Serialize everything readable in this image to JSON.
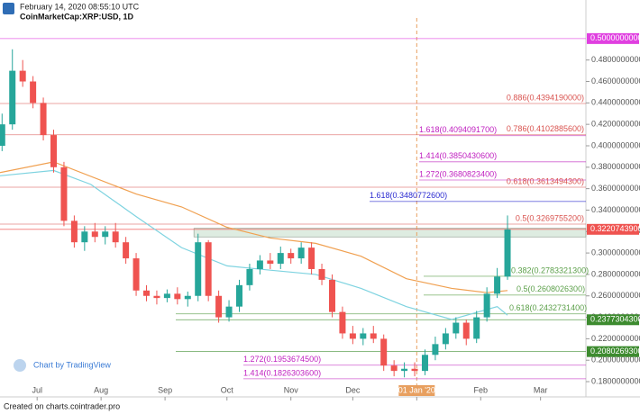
{
  "chart_data": {
    "type": "candlestick",
    "header": {
      "date": "February 14, 2020 08:55:10 UTC",
      "symbol": "CoinMarketCap:XRP:USD, 1D"
    },
    "watermark": "Chart by TradingView",
    "footer": "Created on charts.cointrader.pro",
    "xlim": [
      0,
      284
    ],
    "xticks": [
      {
        "value": 18,
        "label": "Jul"
      },
      {
        "value": 49,
        "label": "Aug"
      },
      {
        "value": 80,
        "label": "Sep"
      },
      {
        "value": 110,
        "label": "Oct"
      },
      {
        "value": 141,
        "label": "Nov"
      },
      {
        "value": 171,
        "label": "Dec"
      },
      {
        "value": 202,
        "label": "01 Jan '20"
      },
      {
        "value": 233,
        "label": "Feb"
      },
      {
        "value": 262,
        "label": "Mar"
      }
    ],
    "ylim": [
      0.175,
      0.515
    ],
    "yticks": [
      {
        "value": 0.18,
        "label": "0.1800000000"
      },
      {
        "value": 0.2,
        "label": "0.2000000000"
      },
      {
        "value": 0.22,
        "label": "0.2200000000"
      },
      {
        "value": 0.24,
        "label": "0.2400000000"
      },
      {
        "value": 0.26,
        "label": "0.2600000000"
      },
      {
        "value": 0.28,
        "label": "0.2800000000"
      },
      {
        "value": 0.3,
        "label": "0.3000000000"
      },
      {
        "value": 0.32,
        "label": "0.3200000000"
      },
      {
        "value": 0.34,
        "label": "0.3400000000"
      },
      {
        "value": 0.36,
        "label": "0.3600000000"
      },
      {
        "value": 0.38,
        "label": "0.3800000000"
      },
      {
        "value": 0.4,
        "label": "0.4000000000"
      },
      {
        "value": 0.42,
        "label": "0.4200000000"
      },
      {
        "value": 0.44,
        "label": "0.4400000000"
      },
      {
        "value": 0.46,
        "label": "0.4600000000"
      },
      {
        "value": 0.48,
        "label": "0.4800000000"
      }
    ],
    "candles": {
      "up_color": "#26a69a",
      "down_color": "#ef5350",
      "x": [
        1,
        6,
        11,
        16,
        21,
        26,
        31,
        36,
        41,
        46,
        51,
        56,
        61,
        66,
        71,
        76,
        81,
        86,
        91,
        96,
        101,
        106,
        111,
        116,
        121,
        126,
        131,
        136,
        141,
        146,
        151,
        156,
        161,
        166,
        171,
        176,
        181,
        186,
        191,
        196,
        201,
        206,
        211,
        216,
        221,
        226,
        231,
        236,
        241,
        246
      ],
      "open": [
        0.4,
        0.42,
        0.47,
        0.46,
        0.44,
        0.41,
        0.38,
        0.33,
        0.31,
        0.32,
        0.315,
        0.32,
        0.31,
        0.295,
        0.265,
        0.26,
        0.258,
        0.262,
        0.257,
        0.26,
        0.31,
        0.26,
        0.24,
        0.25,
        0.27,
        0.285,
        0.293,
        0.29,
        0.3,
        0.295,
        0.305,
        0.285,
        0.275,
        0.245,
        0.225,
        0.22,
        0.225,
        0.22,
        0.195,
        0.19,
        0.192,
        0.19,
        0.205,
        0.215,
        0.225,
        0.235,
        0.22,
        0.24,
        0.262,
        0.278
      ],
      "high": [
        0.43,
        0.49,
        0.48,
        0.465,
        0.445,
        0.415,
        0.385,
        0.335,
        0.325,
        0.328,
        0.325,
        0.328,
        0.315,
        0.3,
        0.27,
        0.265,
        0.266,
        0.268,
        0.264,
        0.318,
        0.312,
        0.265,
        0.256,
        0.275,
        0.29,
        0.298,
        0.3,
        0.306,
        0.304,
        0.31,
        0.31,
        0.29,
        0.28,
        0.25,
        0.232,
        0.23,
        0.232,
        0.224,
        0.2,
        0.198,
        0.198,
        0.21,
        0.222,
        0.23,
        0.24,
        0.238,
        0.246,
        0.268,
        0.286,
        0.335
      ],
      "low": [
        0.395,
        0.415,
        0.455,
        0.435,
        0.405,
        0.375,
        0.325,
        0.305,
        0.302,
        0.31,
        0.308,
        0.305,
        0.29,
        0.26,
        0.255,
        0.252,
        0.254,
        0.252,
        0.25,
        0.255,
        0.255,
        0.235,
        0.236,
        0.245,
        0.265,
        0.28,
        0.285,
        0.285,
        0.29,
        0.29,
        0.28,
        0.27,
        0.24,
        0.22,
        0.215,
        0.214,
        0.216,
        0.19,
        0.185,
        0.184,
        0.185,
        0.186,
        0.2,
        0.21,
        0.22,
        0.214,
        0.216,
        0.236,
        0.258,
        0.275
      ],
      "close": [
        0.42,
        0.47,
        0.46,
        0.44,
        0.41,
        0.38,
        0.33,
        0.31,
        0.32,
        0.315,
        0.32,
        0.31,
        0.295,
        0.265,
        0.26,
        0.258,
        0.262,
        0.257,
        0.26,
        0.31,
        0.26,
        0.24,
        0.25,
        0.27,
        0.285,
        0.293,
        0.29,
        0.3,
        0.295,
        0.305,
        0.285,
        0.275,
        0.245,
        0.225,
        0.22,
        0.225,
        0.22,
        0.195,
        0.19,
        0.192,
        0.19,
        0.205,
        0.215,
        0.225,
        0.235,
        0.22,
        0.24,
        0.262,
        0.278,
        0.322
      ]
    },
    "moving_averages": [
      {
        "color": "#f0a050",
        "x": [
          0,
          26,
          66,
          88,
          110,
          131,
          153,
          175,
          197,
          219,
          236,
          246
        ],
        "values": [
          0.375,
          0.385,
          0.355,
          0.343,
          0.324,
          0.314,
          0.309,
          0.297,
          0.276,
          0.267,
          0.263,
          0.265
        ]
      },
      {
        "color": "#7ed3e0",
        "x": [
          0,
          26,
          44,
          66,
          88,
          110,
          131,
          153,
          175,
          197,
          219,
          241,
          246
        ],
        "values": [
          0.372,
          0.377,
          0.364,
          0.334,
          0.305,
          0.288,
          0.284,
          0.28,
          0.267,
          0.25,
          0.238,
          0.25,
          0.242
        ]
      }
    ],
    "event_line": {
      "x": 202,
      "color": "#e8a060"
    },
    "zone": {
      "ylim": [
        0.315,
        0.323
      ],
      "x_start": 94
    },
    "levels": [
      {
        "label": "0.886(0.4394190000)",
        "value": 0.439419,
        "color": "#d9534f"
      },
      {
        "label": "1.618(0.4094091700)",
        "value": 0.40940917,
        "color": "#c020c0"
      },
      {
        "label": "0.786(0.4102885600)",
        "value": 0.41028856,
        "color": "#d9534f"
      },
      {
        "label": "1.414(0.3850430600)",
        "value": 0.38504306,
        "color": "#c020c0"
      },
      {
        "label": "1.272(0.3680823400)",
        "value": 0.36808234,
        "color": "#c020c0"
      },
      {
        "label": "0.618(0.3613494300)",
        "value": 0.36134943,
        "color": "#d9534f"
      },
      {
        "label": "1.618(0.3480772600)",
        "value": 0.34807726,
        "color": "#2a2ad0"
      },
      {
        "label": "0.5(0.3269755200)",
        "value": 0.32697552,
        "color": "#d9534f"
      },
      {
        "label": "0.382(0.2783321300)",
        "value": 0.27833213,
        "color": "#5ca04a"
      },
      {
        "label": "0.5(0.2608026300)",
        "value": 0.26080263,
        "color": "#5ca04a"
      },
      {
        "label": "0.618(0.2432731400)",
        "value": 0.24327314,
        "color": "#5ca04a"
      },
      {
        "label": "1.272(0.1953674500)",
        "value": 0.19536745,
        "color": "#c020c0"
      },
      {
        "label": "1.414(0.1826303600)",
        "value": 0.18263036,
        "color": "#c020c0"
      }
    ],
    "price_tags": [
      {
        "value": 0.5,
        "label": "0.5000000000",
        "color": "#e040e0"
      },
      {
        "value": 0.32207439,
        "label": "0.3220743900",
        "color": "#ef5350"
      },
      {
        "value": 0.23773043,
        "label": "0.2377304300",
        "color": "#3d8b2f"
      },
      {
        "value": 0.20802693,
        "label": "0.2080269300",
        "color": "#3d8b2f"
      }
    ]
  }
}
